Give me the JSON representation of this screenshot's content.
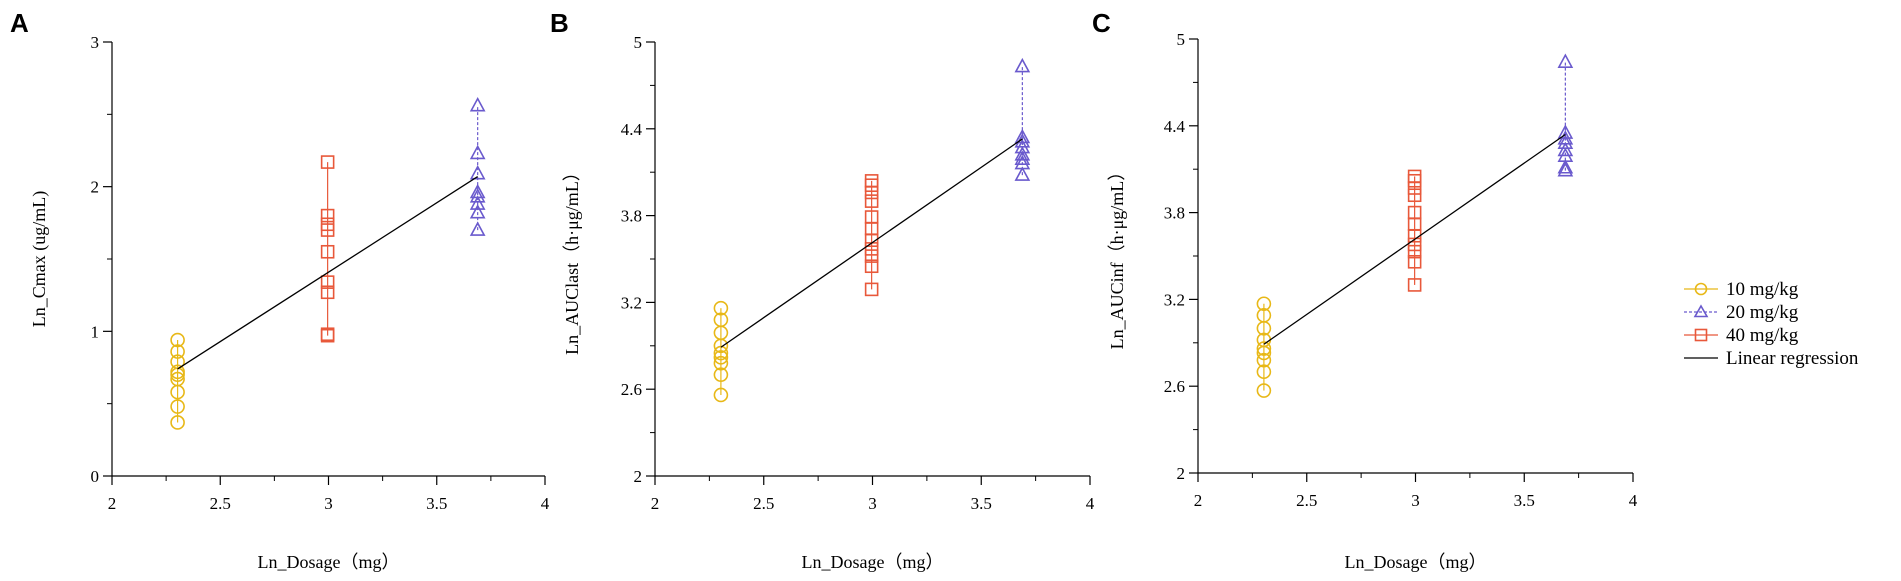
{
  "legend": {
    "items": [
      {
        "label": "10 mg/kg",
        "color": "#E8B817",
        "marker": "circle",
        "dash": "solid"
      },
      {
        "label": "20 mg/kg",
        "color": "#6A5ACD",
        "marker": "triangle",
        "dash": "dashed"
      },
      {
        "label": "40 mg/kg",
        "color": "#E8583A",
        "marker": "square",
        "dash": "solid"
      },
      {
        "label": "Linear regression",
        "color": "#000000",
        "marker": "none",
        "dash": "solid"
      }
    ]
  },
  "chart_data": [
    {
      "panel_label": "A",
      "type": "scatter",
      "title": "",
      "xlabel": "Ln_Dosage（mg）",
      "ylabel": "Ln_Cmax (ug/mL)",
      "xlim": [
        2,
        4
      ],
      "ylim": [
        0,
        3
      ],
      "xticks": [
        2,
        2.5,
        3,
        3.5,
        4
      ],
      "xtick_labels": [
        "2",
        "2.5",
        "3",
        "3.5",
        "4"
      ],
      "yticks": [
        0,
        1,
        2,
        3
      ],
      "ytick_labels": [
        "0",
        "1",
        "2",
        "3"
      ],
      "series": [
        {
          "name": "10 mg/kg",
          "x": 2.303,
          "y": [
            0.37,
            0.48,
            0.58,
            0.67,
            0.7,
            0.72,
            0.79,
            0.86,
            0.94
          ]
        },
        {
          "name": "20 mg/kg",
          "x": 3.689,
          "y": [
            1.7,
            1.82,
            1.88,
            1.93,
            1.96,
            2.09,
            2.23,
            2.56
          ]
        },
        {
          "name": "40 mg/kg",
          "x": 2.996,
          "y": [
            0.97,
            0.98,
            1.27,
            1.34,
            1.55,
            1.7,
            1.74,
            1.8,
            2.17
          ]
        }
      ],
      "regression": {
        "x": [
          2.303,
          3.689
        ],
        "y": [
          0.74,
          2.07
        ]
      }
    },
    {
      "panel_label": "B",
      "type": "scatter",
      "title": "",
      "xlabel": "Ln_Dosage（mg）",
      "ylabel": "Ln_AUClast（h·μg/mL）",
      "xlim": [
        2,
        4
      ],
      "ylim": [
        2,
        5
      ],
      "xticks": [
        2,
        2.5,
        3,
        3.5,
        4
      ],
      "xtick_labels": [
        "2",
        "2.5",
        "3",
        "3.5",
        "4"
      ],
      "yticks": [
        2,
        2.6,
        3.2,
        3.8,
        4.4,
        5
      ],
      "ytick_labels": [
        "2",
        "2.6",
        "3.2",
        "3.8",
        "4.4",
        "5"
      ],
      "series": [
        {
          "name": "10 mg/kg",
          "x": 2.303,
          "y": [
            2.56,
            2.7,
            2.78,
            2.82,
            2.85,
            2.9,
            2.99,
            3.08,
            3.16
          ]
        },
        {
          "name": "20 mg/kg",
          "x": 3.689,
          "y": [
            4.08,
            4.16,
            4.19,
            4.22,
            4.27,
            4.31,
            4.34,
            4.83
          ]
        },
        {
          "name": "40 mg/kg",
          "x": 2.996,
          "y": [
            3.29,
            3.45,
            3.52,
            3.57,
            3.63,
            3.71,
            3.79,
            3.9,
            3.96,
            4.01,
            4.04
          ]
        }
      ],
      "regression": {
        "x": [
          2.303,
          3.689
        ],
        "y": [
          2.89,
          4.33
        ]
      }
    },
    {
      "panel_label": "C",
      "type": "scatter",
      "title": "",
      "xlabel": "Ln_Dosage（mg）",
      "ylabel": "Ln_AUCinf（h·μg/mL）",
      "xlim": [
        2,
        4
      ],
      "ylim": [
        2,
        5
      ],
      "xticks": [
        2,
        2.5,
        3,
        3.5,
        4
      ],
      "xtick_labels": [
        "2",
        "2.5",
        "3",
        "3.5",
        "4"
      ],
      "yticks": [
        2,
        2.6,
        3.2,
        3.8,
        4.4,
        5
      ],
      "ytick_labels": [
        "2",
        "2.6",
        "3.2",
        "3.8",
        "4.4",
        "5"
      ],
      "series": [
        {
          "name": "10 mg/kg",
          "x": 2.303,
          "y": [
            2.57,
            2.7,
            2.78,
            2.83,
            2.86,
            2.92,
            3.0,
            3.09,
            3.17
          ]
        },
        {
          "name": "20 mg/kg",
          "x": 3.689,
          "y": [
            4.09,
            4.11,
            4.19,
            4.23,
            4.28,
            4.31,
            4.35,
            4.84
          ]
        },
        {
          "name": "40 mg/kg",
          "x": 2.996,
          "y": [
            3.3,
            3.46,
            3.53,
            3.58,
            3.64,
            3.72,
            3.8,
            3.92,
            3.97,
            4.02,
            4.05
          ]
        }
      ],
      "regression": {
        "x": [
          2.303,
          3.689
        ],
        "y": [
          2.89,
          4.34
        ]
      }
    }
  ]
}
